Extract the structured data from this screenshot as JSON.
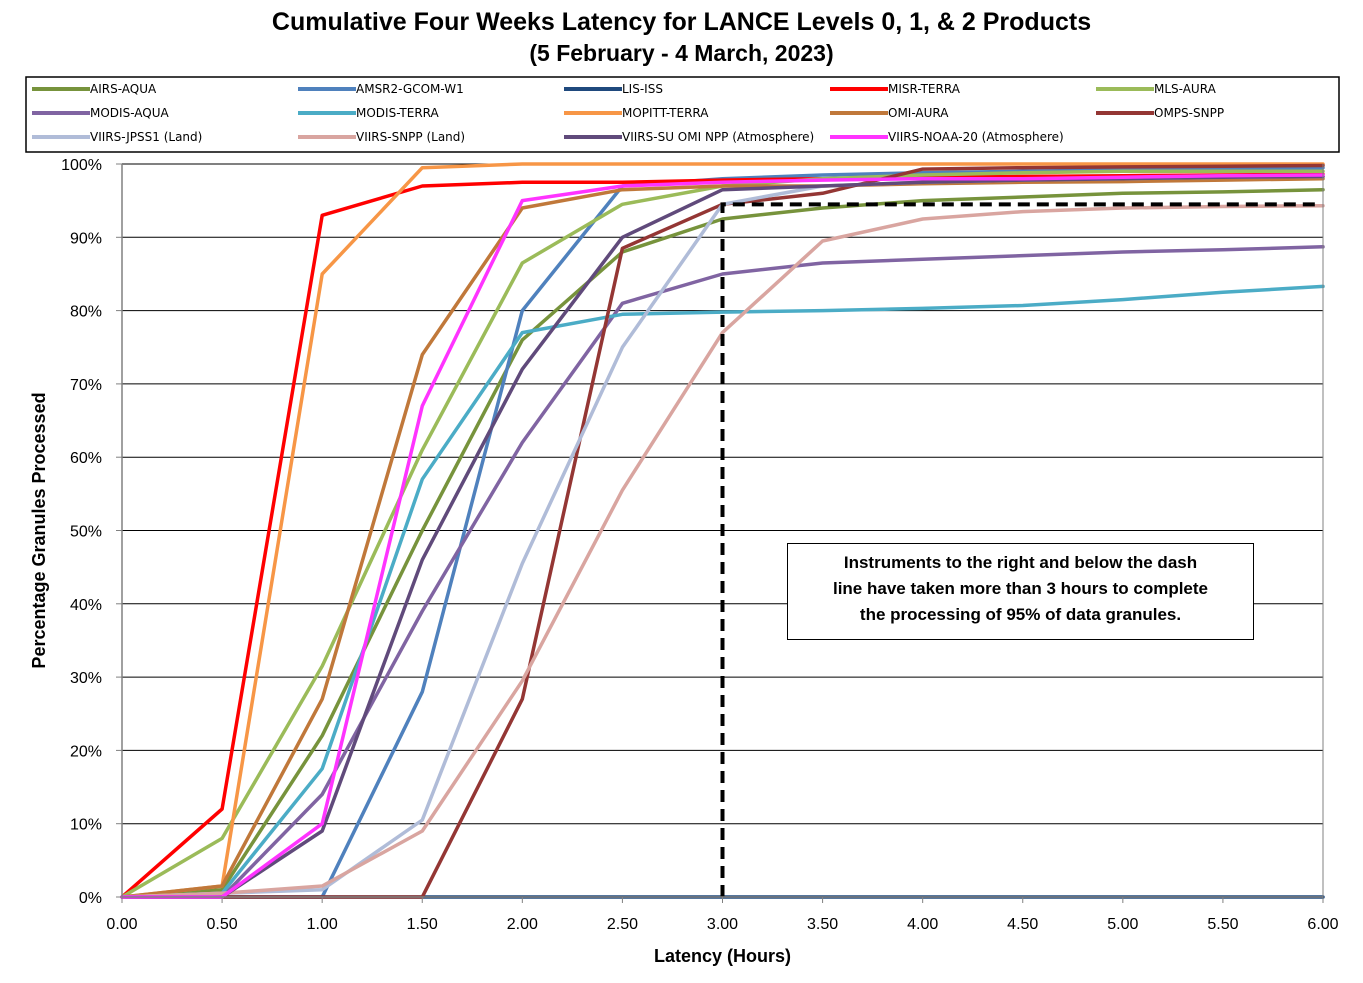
{
  "chart_data": {
    "type": "line",
    "title": "Cumulative Four Weeks Latency  for LANCE Levels 0, 1, & 2 Products",
    "subtitle": "(5  February   -  4  March,  2023)",
    "xlabel": "Latency (Hours)",
    "ylabel": "Percentage Granules Processed",
    "xlim": [
      0,
      6
    ],
    "ylim": [
      0,
      100
    ],
    "x_ticks": [
      "0.00",
      "0.50",
      "1.00",
      "1.50",
      "2.00",
      "2.50",
      "3.00",
      "3.50",
      "4.00",
      "4.50",
      "5.00",
      "5.50",
      "6.00"
    ],
    "y_ticks": [
      "0%",
      "10%",
      "20%",
      "30%",
      "40%",
      "50%",
      "60%",
      "70%",
      "80%",
      "90%",
      "100%"
    ],
    "grid": "horizontal",
    "legend_position": "top",
    "annotation": {
      "lines": [
        "Instruments to the right and below the dash",
        "line have taken more than 3 hours to complete",
        "the processing of 95% of data granules."
      ]
    },
    "threshold_line": {
      "hours": 3.0,
      "percent": 94.5,
      "style": "black dashed"
    },
    "series": [
      {
        "name": "AIRS-AQUA",
        "color": "#77933C",
        "points": [
          [
            0,
            0
          ],
          [
            0.5,
            1
          ],
          [
            1,
            22
          ],
          [
            1.5,
            50
          ],
          [
            2,
            76
          ],
          [
            2.5,
            88
          ],
          [
            3,
            92.5
          ],
          [
            3.5,
            94
          ],
          [
            4,
            95
          ],
          [
            4.5,
            95.5
          ],
          [
            5,
            96
          ],
          [
            5.5,
            96.2
          ],
          [
            6,
            96.5
          ]
        ]
      },
      {
        "name": "AMSR2-GCOM-W1",
        "color": "#4F81BD",
        "points": [
          [
            0,
            0
          ],
          [
            0.5,
            0
          ],
          [
            1,
            0
          ],
          [
            1.5,
            28
          ],
          [
            2,
            80
          ],
          [
            2.5,
            97
          ],
          [
            3,
            98
          ],
          [
            3.5,
            98.5
          ],
          [
            4,
            98.8
          ],
          [
            4.5,
            99
          ],
          [
            5,
            99.2
          ],
          [
            5.5,
            99.4
          ],
          [
            6,
            99.5
          ]
        ]
      },
      {
        "name": "LIS-ISS",
        "color": "#1F497D",
        "points": [
          [
            0,
            0
          ],
          [
            6,
            0
          ]
        ]
      },
      {
        "name": "MISR-TERRA",
        "color": "#FF0000",
        "points": [
          [
            0,
            0
          ],
          [
            0.5,
            12
          ],
          [
            1,
            93
          ],
          [
            1.5,
            97
          ],
          [
            2,
            97.5
          ],
          [
            2.5,
            97.5
          ],
          [
            3,
            97.8
          ],
          [
            3.5,
            98
          ],
          [
            4,
            98.2
          ],
          [
            4.5,
            98.3
          ],
          [
            5,
            98.4
          ],
          [
            5.5,
            98.5
          ],
          [
            6,
            98.6
          ]
        ]
      },
      {
        "name": "MLS-AURA",
        "color": "#9BBB59",
        "points": [
          [
            0,
            0
          ],
          [
            0.5,
            8
          ],
          [
            1,
            31.5
          ],
          [
            1.5,
            61
          ],
          [
            2,
            86.5
          ],
          [
            2.5,
            94.5
          ],
          [
            3,
            97
          ],
          [
            3.5,
            98
          ],
          [
            4,
            98.5
          ],
          [
            4.5,
            98.8
          ],
          [
            5,
            99
          ],
          [
            5.5,
            99
          ],
          [
            6,
            99
          ]
        ]
      },
      {
        "name": "MODIS-AQUA",
        "color": "#8064A2",
        "points": [
          [
            0,
            0
          ],
          [
            0.5,
            0
          ],
          [
            1,
            14
          ],
          [
            1.5,
            39
          ],
          [
            2,
            62
          ],
          [
            2.5,
            81
          ],
          [
            3,
            85
          ],
          [
            3.5,
            86.5
          ],
          [
            4,
            87
          ],
          [
            4.5,
            87.5
          ],
          [
            5,
            88
          ],
          [
            5.5,
            88.3
          ],
          [
            6,
            88.7
          ]
        ]
      },
      {
        "name": "MODIS-TERRA",
        "color": "#4BACC6",
        "points": [
          [
            0,
            0
          ],
          [
            0.5,
            0.5
          ],
          [
            1,
            17.5
          ],
          [
            1.5,
            57
          ],
          [
            2,
            77
          ],
          [
            2.5,
            79.5
          ],
          [
            3,
            79.8
          ],
          [
            3.5,
            80
          ],
          [
            4,
            80.3
          ],
          [
            4.5,
            80.7
          ],
          [
            5,
            81.5
          ],
          [
            5.5,
            82.5
          ],
          [
            6,
            83.3
          ]
        ]
      },
      {
        "name": "MOPITT-TERRA",
        "color": "#F79646",
        "points": [
          [
            0,
            0
          ],
          [
            0.5,
            1.5
          ],
          [
            1,
            85
          ],
          [
            1.5,
            99.5
          ],
          [
            2,
            100
          ],
          [
            2.5,
            100
          ],
          [
            3,
            100
          ],
          [
            3.5,
            100
          ],
          [
            4,
            100
          ],
          [
            4.5,
            100
          ],
          [
            5,
            100
          ],
          [
            5.5,
            100
          ],
          [
            6,
            100
          ]
        ]
      },
      {
        "name": "OMI-AURA",
        "color": "#C0783A",
        "points": [
          [
            0,
            0
          ],
          [
            0.5,
            1.5
          ],
          [
            1,
            27
          ],
          [
            1.5,
            74
          ],
          [
            2,
            94
          ],
          [
            2.5,
            96.5
          ],
          [
            3,
            97
          ],
          [
            3.5,
            97
          ],
          [
            4,
            97.3
          ],
          [
            4.5,
            97.5
          ],
          [
            5,
            97.6
          ],
          [
            5.5,
            97.8
          ],
          [
            6,
            98
          ]
        ]
      },
      {
        "name": "OMPS-SNPP",
        "color": "#943634",
        "points": [
          [
            0,
            0
          ],
          [
            1.5,
            0
          ],
          [
            2,
            27
          ],
          [
            2.5,
            88.5
          ],
          [
            3,
            94.5
          ],
          [
            3.5,
            96
          ],
          [
            4,
            99.3
          ],
          [
            4.5,
            99.5
          ],
          [
            5,
            99.6
          ],
          [
            5.5,
            99.7
          ],
          [
            6,
            99.8
          ]
        ]
      },
      {
        "name": "VIIRS-JPSS1 (Land)",
        "color": "#B0BCD8",
        "points": [
          [
            0,
            0
          ],
          [
            0.5,
            0.5
          ],
          [
            1,
            1
          ],
          [
            1.5,
            10.5
          ],
          [
            2,
            45.5
          ],
          [
            2.5,
            75
          ],
          [
            3,
            94.5
          ],
          [
            3.5,
            97
          ],
          [
            4,
            97.5
          ],
          [
            4.5,
            97.8
          ],
          [
            5,
            98
          ],
          [
            5.5,
            98.2
          ],
          [
            6,
            98.3
          ]
        ]
      },
      {
        "name": "VIIRS-SNPP (Land)",
        "color": "#D9A5A0",
        "points": [
          [
            0,
            0
          ],
          [
            0.5,
            0.5
          ],
          [
            1,
            1.5
          ],
          [
            1.5,
            9
          ],
          [
            2,
            29.5
          ],
          [
            2.5,
            55.5
          ],
          [
            3,
            77
          ],
          [
            3.5,
            89.5
          ],
          [
            4,
            92.5
          ],
          [
            4.5,
            93.5
          ],
          [
            5,
            94
          ],
          [
            5.5,
            94.2
          ],
          [
            6,
            94.3
          ]
        ]
      },
      {
        "name": "VIIRS-SU OMI NPP (Atmosphere)",
        "color": "#604A7B",
        "points": [
          [
            0,
            0
          ],
          [
            0.5,
            0
          ],
          [
            1,
            9
          ],
          [
            1.5,
            46
          ],
          [
            2,
            72
          ],
          [
            2.5,
            90
          ],
          [
            3,
            96.5
          ],
          [
            3.5,
            97
          ],
          [
            4,
            97.5
          ],
          [
            4.5,
            97.8
          ],
          [
            5,
            98
          ],
          [
            5.5,
            98.2
          ],
          [
            6,
            98.3
          ]
        ]
      },
      {
        "name": "VIIRS-NOAA-20 (Atmosphere)",
        "color": "#FF33FF",
        "points": [
          [
            0,
            0
          ],
          [
            0.5,
            0
          ],
          [
            1,
            10
          ],
          [
            1.5,
            67
          ],
          [
            2,
            95
          ],
          [
            2.5,
            97
          ],
          [
            3,
            97.5
          ],
          [
            3.5,
            97.8
          ],
          [
            4,
            98
          ],
          [
            4.5,
            98
          ],
          [
            5,
            98.2
          ],
          [
            5.5,
            98.4
          ],
          [
            6,
            98.5
          ]
        ]
      }
    ]
  }
}
